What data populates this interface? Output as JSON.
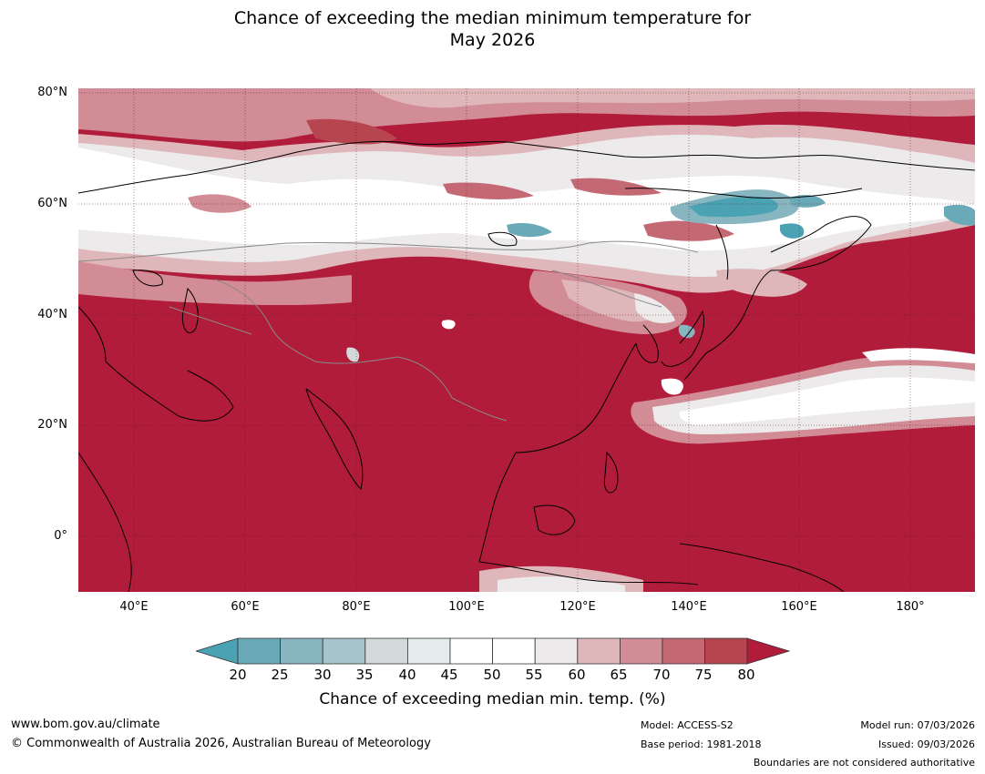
{
  "title_line1": "Chance of exceeding the median minimum temperature for",
  "title_line2": "May 2026",
  "map": {
    "lat_labels": [
      "80°N",
      "60°N",
      "40°N",
      "20°N",
      "0°"
    ],
    "lon_labels": [
      "40°E",
      "60°E",
      "80°E",
      "100°E",
      "120°E",
      "140°E",
      "160°E",
      "180°"
    ]
  },
  "colorbar": {
    "ticks": [
      "20",
      "25",
      "30",
      "35",
      "40",
      "45",
      "50",
      "55",
      "60",
      "65",
      "70",
      "75",
      "80"
    ],
    "colors": [
      "#6aa9b7",
      "#87b5c0",
      "#a8c4cb",
      "#d3d9da",
      "#e6ecee",
      "#ffffff",
      "#ffffff",
      "#eceaea",
      "#dfb6ba",
      "#d18c96",
      "#c46874",
      "#b6454f"
    ],
    "low_color": "#4ba2b2",
    "high_color": "#b01c3a",
    "label": "Chance of exceeding median min. temp. (%)"
  },
  "footer": {
    "website": "www.bom.gov.au/climate",
    "copyright": "© Commonwealth of Australia 2026, Australian Bureau of Meteorology",
    "model": "Model: ACCESS-S2",
    "base_period": "Base period: 1981-2018",
    "model_run": "Model run: 07/03/2026",
    "issued": "Issued: 09/03/2026",
    "boundaries_note": "Boundaries are not considered authoritative"
  }
}
